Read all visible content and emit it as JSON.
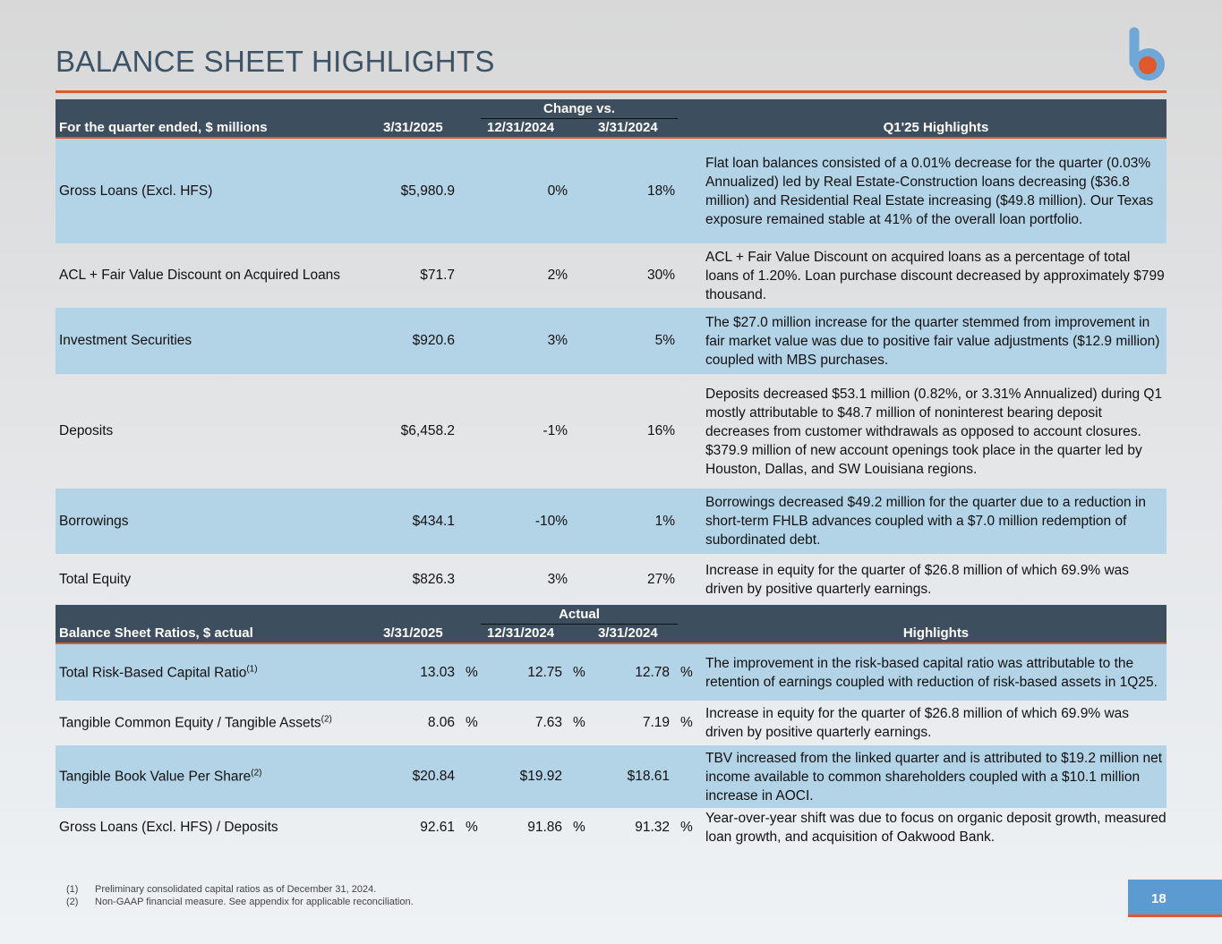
{
  "title": "BALANCE SHEET HIGHLIGHTS",
  "colors": {
    "header": "#3d4f5e",
    "accent": "#e0592b",
    "row_blue": "#b3d3e6",
    "logo_blue": "#6fa8d8"
  },
  "table1": {
    "header": {
      "label": "For the quarter ended, $ millions",
      "group": "Change vs.",
      "c1": "3/31/2025",
      "c2": "12/31/2024",
      "c3": "3/31/2024",
      "hl": "Q1'25 Highlights"
    },
    "rows": [
      {
        "label": "Gross Loans (Excl. HFS)",
        "c1": "$5,980.9",
        "c2": "0%",
        "c3": "18%",
        "hl": "Flat loan balances consisted of a 0.01% decrease for the quarter (0.03% Annualized) led by Real Estate-Construction loans decreasing ($36.8 million) and Residential Real Estate increasing ($49.8 million). Our Texas exposure remained stable at 41% of the overall loan portfolio."
      },
      {
        "label": "ACL + Fair Value Discount on Acquired Loans",
        "c1": "$71.7",
        "c2": "2%",
        "c3": "30%",
        "hl": "ACL + Fair Value Discount on acquired loans as a percentage of total loans of 1.20%. Loan purchase discount decreased by approximately $799 thousand."
      },
      {
        "label": "Investment Securities",
        "c1": "$920.6",
        "c2": "3%",
        "c3": "5%",
        "hl": "The $27.0 million increase for the quarter stemmed from improvement in fair market value was due to positive fair value adjustments ($12.9 million) coupled with MBS purchases."
      },
      {
        "label": "Deposits",
        "c1": "$6,458.2",
        "c2": "-1%",
        "c3": "16%",
        "hl": "Deposits decreased $53.1 million (0.82%, or 3.31% Annualized) during Q1 mostly attributable to $48.7 million of noninterest bearing deposit decreases from customer withdrawals as opposed to account closures. $379.9 million of new account openings took place in the quarter led by Houston, Dallas, and SW Louisiana regions."
      },
      {
        "label": "Borrowings",
        "c1": "$434.1",
        "c2": "-10%",
        "c3": "1%",
        "hl": "Borrowings decreased $49.2 million for the quarter due to a reduction in short-term FHLB advances coupled with a $7.0 million redemption of subordinated debt."
      },
      {
        "label": "Total Equity",
        "c1": "$826.3",
        "c2": "3%",
        "c3": "27%",
        "hl": "Increase in equity for the quarter of $26.8 million of which 69.9% was driven by positive quarterly earnings."
      }
    ]
  },
  "table2": {
    "header": {
      "label": "Balance Sheet Ratios, $ actual",
      "group": "Actual",
      "c1": "3/31/2025",
      "c2": "12/31/2024",
      "c3": "3/31/2024",
      "hl": "Highlights"
    },
    "pct": "%",
    "rows": [
      {
        "label": "Total Risk-Based Capital Ratio",
        "sup": "(1)",
        "c1": "13.03",
        "c2": "12.75",
        "c3": "12.78",
        "pct": true,
        "hl": "The improvement in the risk-based capital ratio was attributable to the retention of earnings coupled with reduction of risk-based assets in 1Q25."
      },
      {
        "label": "Tangible Common Equity / Tangible Assets",
        "sup": "(2)",
        "c1": "8.06",
        "c2": "7.63",
        "c3": "7.19",
        "pct": true,
        "hl": "Increase in equity for the quarter of $26.8 million of which 69.9% was driven by positive quarterly earnings."
      },
      {
        "label": "Tangible Book Value Per Share",
        "sup": "(2)",
        "c1": "$20.84",
        "c2": "$19.92",
        "c3": "$18.61",
        "pct": false,
        "hl": "TBV increased from the linked quarter and is attributed to $19.2 million net income available to common shareholders coupled with a $10.1 million increase in AOCI."
      },
      {
        "label": "Gross Loans (Excl. HFS) / Deposits",
        "sup": "",
        "c1": "92.61",
        "c2": "91.86",
        "c3": "91.32",
        "pct": true,
        "hl": "Year-over-year shift was due to focus on organic deposit growth, measured loan growth, and acquisition of Oakwood Bank."
      }
    ]
  },
  "footnotes": [
    {
      "n": "(1)",
      "t": "Preliminary consolidated capital ratios as of December 31, 2024."
    },
    {
      "n": "(2)",
      "t": "Non-GAAP financial measure. See appendix for applicable reconciliation."
    }
  ],
  "page_number": "18"
}
